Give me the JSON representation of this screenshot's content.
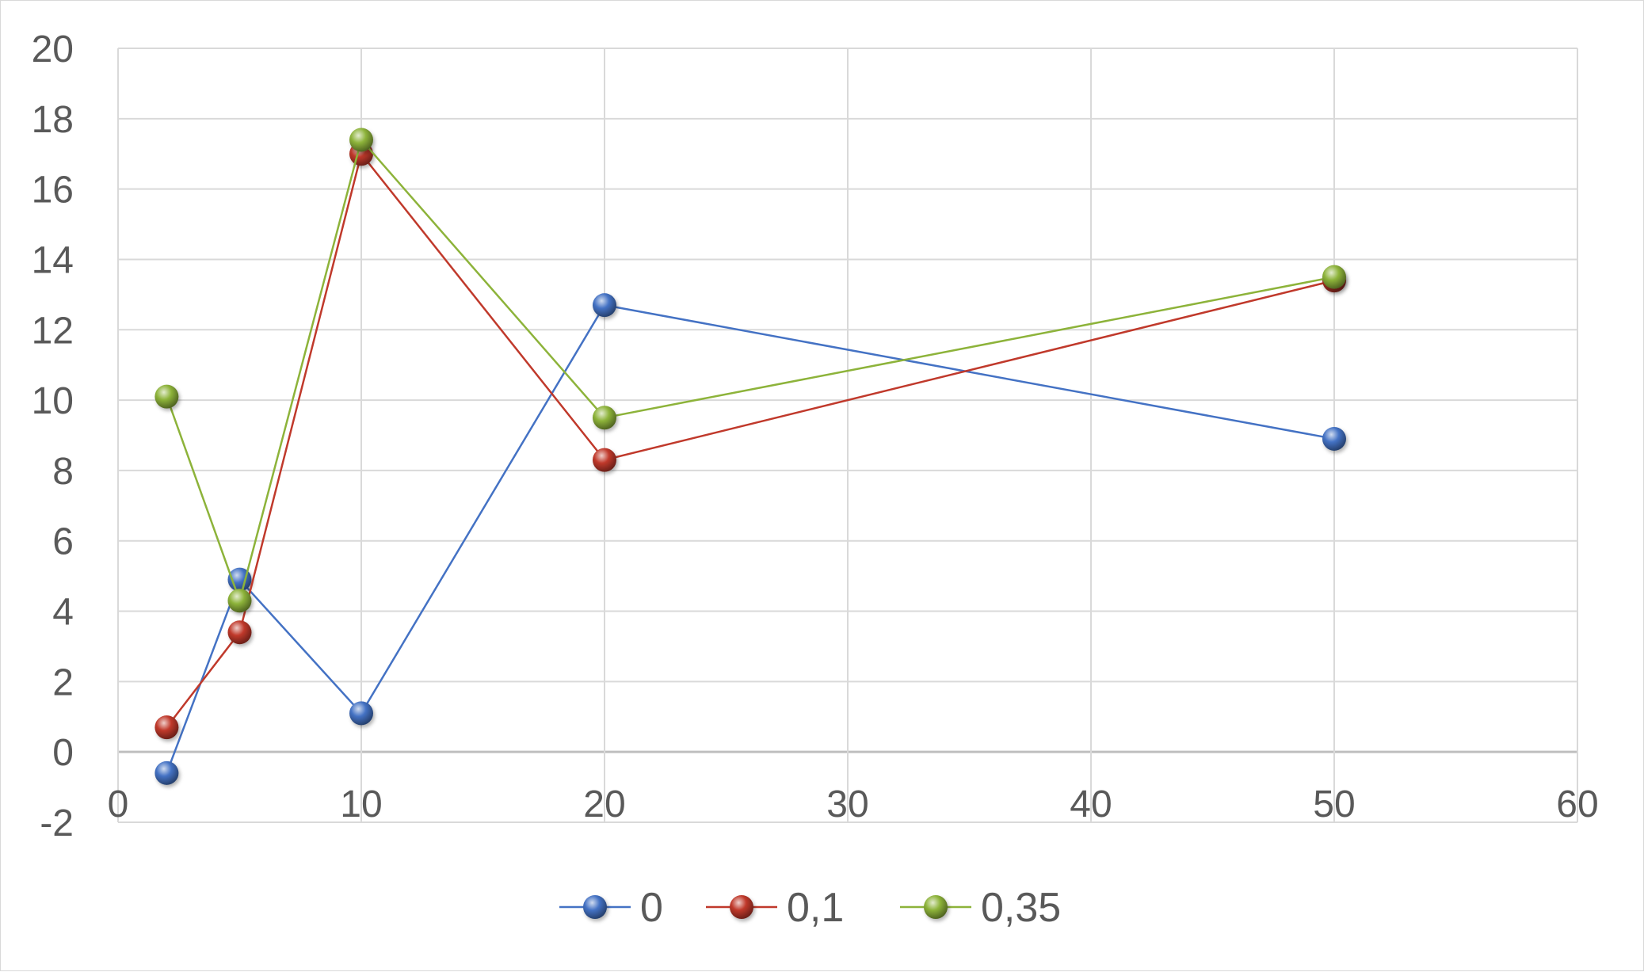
{
  "chart_data": {
    "type": "scatter",
    "title": "",
    "xlabel": "",
    "ylabel": "",
    "xlim": [
      0,
      60
    ],
    "ylim": [
      -2,
      20
    ],
    "x_ticks": [
      0,
      10,
      20,
      30,
      40,
      50,
      60
    ],
    "y_ticks": [
      -2,
      0,
      2,
      4,
      6,
      8,
      10,
      12,
      14,
      16,
      18,
      20
    ],
    "grid": true,
    "legend": "bottom",
    "x": [
      2,
      5,
      10,
      20,
      50
    ],
    "series": [
      {
        "name": "0",
        "values": [
          -0.6,
          4.9,
          1.1,
          12.7,
          8.9
        ],
        "color": "#4472c4"
      },
      {
        "name": "0,1",
        "values": [
          0.7,
          3.4,
          17.0,
          8.3,
          13.4
        ],
        "color": "#c0392b"
      },
      {
        "name": "0,35",
        "values": [
          10.1,
          4.3,
          17.4,
          9.5,
          13.5
        ],
        "color": "#8db33a"
      }
    ]
  }
}
